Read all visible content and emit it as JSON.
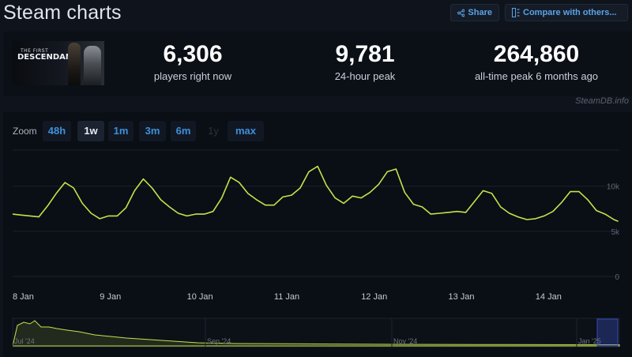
{
  "header": {
    "title": "Steam charts",
    "share_label": "Share",
    "compare_label": "Compare with others..."
  },
  "game": {
    "thumb_line1": "THE FIRST",
    "thumb_line2": "DESCENDANT"
  },
  "stats": {
    "players_now": "6,306",
    "players_now_label": "players right now",
    "peak_24h": "9,781",
    "peak_24h_label": "24-hour peak",
    "peak_all": "264,860",
    "peak_all_label": "all-time peak 6 months ago"
  },
  "watermark": "SteamDB.info",
  "zoom": {
    "label": "Zoom",
    "options": [
      "48h",
      "1w",
      "1m",
      "3m",
      "6m",
      "1y",
      "max"
    ],
    "active": "1w",
    "disabled": [
      "1y"
    ]
  },
  "colors": {
    "line": "#c4e34a",
    "grid": "#1a212c",
    "accent": "#3f8fda"
  },
  "chart_data": {
    "type": "line",
    "title": "",
    "xlabel": "",
    "ylabel": "",
    "x_tick_labels": [
      "8 Jan",
      "9 Jan",
      "10 Jan",
      "11 Jan",
      "12 Jan",
      "13 Jan",
      "14 Jan"
    ],
    "y_tick_labels": [
      "0",
      "5k",
      "10k"
    ],
    "ylim": [
      0,
      14000
    ],
    "grid": true,
    "x": [
      0,
      0.1,
      0.2,
      0.3,
      0.4,
      0.5,
      0.6,
      0.7,
      0.8,
      0.9,
      1.0,
      1.1,
      1.2,
      1.3,
      1.4,
      1.5,
      1.6,
      1.7,
      1.8,
      1.9,
      2.0,
      2.1,
      2.2,
      2.3,
      2.4,
      2.5,
      2.6,
      2.7,
      2.8,
      2.9,
      3.0,
      3.1,
      3.2,
      3.3,
      3.4,
      3.5,
      3.6,
      3.7,
      3.8,
      3.9,
      4.0,
      4.1,
      4.2,
      4.3,
      4.4,
      4.5,
      4.6,
      4.7,
      4.8,
      4.9,
      5.0,
      5.1,
      5.2,
      5.3,
      5.4,
      5.5,
      5.6,
      5.7,
      5.8,
      5.9,
      6.0,
      6.1,
      6.2,
      6.3,
      6.4,
      6.5,
      6.6,
      6.7,
      6.8,
      6.9,
      6.95
    ],
    "series": [
      {
        "values": [
          6900,
          6800,
          6700,
          6600,
          7800,
          9200,
          10400,
          9800,
          8100,
          7000,
          6400,
          6700,
          6700,
          7600,
          9500,
          10800,
          9800,
          8500,
          7700,
          7000,
          6700,
          6900,
          6900,
          7200,
          8700,
          11000,
          10400,
          9200,
          8500,
          7900,
          7900,
          8800,
          9000,
          9800,
          11600,
          12200,
          10100,
          8700,
          8100,
          8900,
          8700,
          9300,
          10200,
          11600,
          11900,
          9300,
          8000,
          7700,
          6900,
          7000,
          7100,
          7200,
          7100,
          8300,
          9500,
          9200,
          7700,
          7000,
          6600,
          6300,
          6400,
          6700,
          7200,
          8200,
          9400,
          9400,
          8500,
          7300,
          6900,
          6300,
          6100
        ]
      }
    ],
    "navigator": {
      "x_tick_labels": [
        "Jul '24",
        "Sep '24",
        "Nov '24",
        "Jan '25"
      ]
    }
  }
}
